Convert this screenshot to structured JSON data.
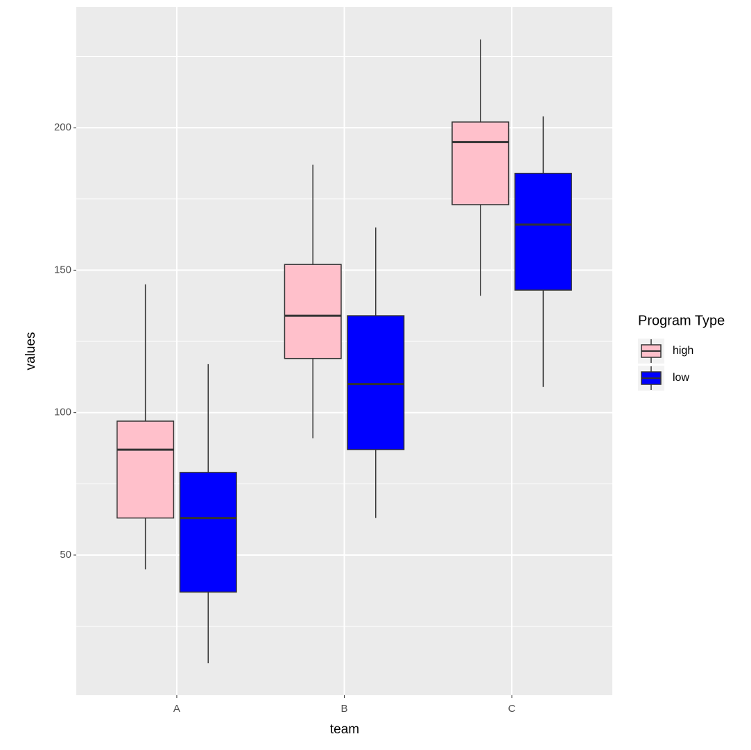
{
  "chart_data": {
    "type": "boxplot",
    "x_label": "team",
    "y_label": "values",
    "categories": [
      "A",
      "B",
      "C"
    ],
    "legend_title": "Program Type",
    "series": [
      {
        "name": "high",
        "color": "#ffc0cb",
        "whisker_low": [
          45,
          91,
          141
        ],
        "q1": [
          63,
          119,
          173
        ],
        "median": [
          87,
          134,
          195
        ],
        "q3": [
          97,
          152,
          202
        ],
        "whisker_high": [
          145,
          187,
          231
        ]
      },
      {
        "name": "low",
        "color": "#0000ff",
        "whisker_low": [
          12,
          63,
          109
        ],
        "q1": [
          37,
          87,
          143
        ],
        "median": [
          63,
          110,
          166
        ],
        "q3": [
          79,
          134,
          184
        ],
        "whisker_high": [
          117,
          165,
          204
        ]
      }
    ],
    "ylim": [
      0.8,
      242.4
    ],
    "yticks": [
      50,
      100,
      150,
      200
    ],
    "minor_yticks": [
      25,
      75,
      125,
      175,
      225
    ],
    "grid": true,
    "legend_position": "right"
  }
}
